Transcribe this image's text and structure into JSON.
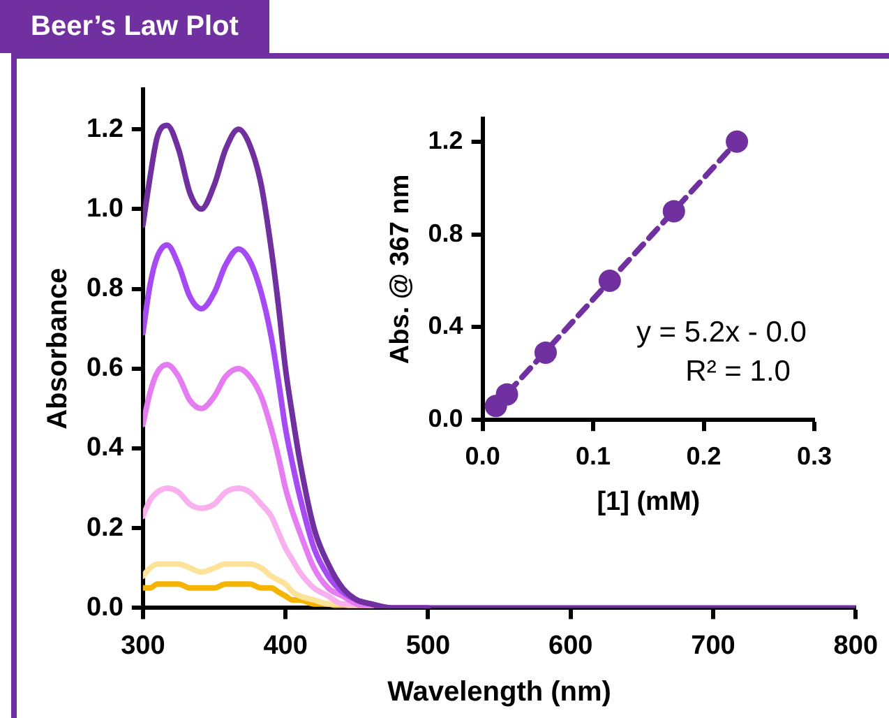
{
  "chart_data": [
    {
      "type": "line",
      "title": "Beer’s Law Plot",
      "xlabel": "Wavelength (nm)",
      "ylabel": "Absorbance",
      "x": [
        300,
        305,
        310,
        317,
        325,
        333,
        341,
        350,
        358,
        367,
        375,
        383,
        390,
        395,
        400,
        405,
        410,
        420,
        430,
        440,
        450,
        460,
        475,
        500,
        600,
        700,
        800
      ],
      "series": [
        {
          "color": "#7030a0",
          "values": [
            0.96,
            1.08,
            1.18,
            1.21,
            1.15,
            1.04,
            1.0,
            1.06,
            1.15,
            1.2,
            1.16,
            1.06,
            0.9,
            0.76,
            0.6,
            0.48,
            0.37,
            0.2,
            0.11,
            0.05,
            0.02,
            0.01,
            0,
            0,
            0,
            0,
            0
          ]
        },
        {
          "color": "#a64bf4",
          "values": [
            0.69,
            0.81,
            0.88,
            0.91,
            0.86,
            0.78,
            0.75,
            0.79,
            0.86,
            0.9,
            0.87,
            0.79,
            0.68,
            0.57,
            0.45,
            0.36,
            0.28,
            0.15,
            0.08,
            0.04,
            0.02,
            0.01,
            0,
            0,
            null,
            null,
            null
          ]
        },
        {
          "color": "#e57cf2",
          "values": [
            0.46,
            0.54,
            0.59,
            0.61,
            0.58,
            0.52,
            0.5,
            0.53,
            0.58,
            0.6,
            0.58,
            0.53,
            0.45,
            0.38,
            0.3,
            0.24,
            0.19,
            0.1,
            0.05,
            0.03,
            0.01,
            0,
            0,
            0,
            null,
            null,
            null
          ]
        },
        {
          "color": "#f9b0ee",
          "values": [
            0.23,
            0.27,
            0.29,
            0.3,
            0.29,
            0.26,
            0.25,
            0.26,
            0.29,
            0.3,
            0.29,
            0.26,
            0.23,
            0.19,
            0.15,
            0.12,
            0.09,
            0.05,
            0.03,
            0.01,
            0.01,
            0,
            null,
            null,
            null,
            null,
            null
          ]
        },
        {
          "color": "#fde29a",
          "values": [
            0.08,
            0.1,
            0.11,
            0.11,
            0.11,
            0.1,
            0.09,
            0.1,
            0.11,
            0.11,
            0.11,
            0.1,
            0.08,
            0.07,
            0.06,
            0.04,
            0.03,
            0.02,
            0.01,
            0.01,
            0,
            0,
            null,
            null,
            null,
            null,
            null
          ]
        },
        {
          "color": "#f5b400",
          "values": [
            0.05,
            0.05,
            0.06,
            0.06,
            0.06,
            0.05,
            0.05,
            0.05,
            0.06,
            0.06,
            0.06,
            0.05,
            0.05,
            0.04,
            0.03,
            0.02,
            0.02,
            0.01,
            0.01,
            0,
            0,
            0,
            null,
            null,
            null,
            null,
            null
          ]
        }
      ],
      "xlim": [
        300,
        800
      ],
      "xticks": [
        300,
        400,
        500,
        600,
        700,
        800
      ],
      "ylim": [
        0,
        1.3
      ],
      "yticks": [
        {
          "value": 0,
          "label": "0.0"
        },
        {
          "value": 0.2,
          "label": "0.2"
        },
        {
          "value": 0.4,
          "label": "0.4"
        },
        {
          "value": 0.6,
          "label": "0.6"
        },
        {
          "value": 0.8,
          "label": "0.8"
        },
        {
          "value": 1,
          "label": "1.0"
        },
        {
          "value": 1.2,
          "label": "1.2"
        }
      ],
      "grid": false,
      "legend": false,
      "marker": "none"
    },
    {
      "type": "scatter",
      "xlabel": "[1] (mM)",
      "ylabel": "Abs. @ 367 nm",
      "series": [
        {
          "type": "scatter",
          "color": "#7030a0",
          "x": [
            0.012,
            0.022,
            0.057,
            0.115,
            0.173,
            0.23
          ],
          "values": [
            0.06,
            0.11,
            0.29,
            0.6,
            0.9,
            1.2
          ],
          "marker": "circle"
        },
        {
          "type": "line",
          "color": "#7030a0",
          "x": [
            0.01,
            0.23
          ],
          "values": [
            0.05,
            1.2
          ],
          "line_style": "dashed",
          "marker": "none"
        }
      ],
      "xlim": [
        0,
        0.3
      ],
      "xticks": [
        {
          "value": 0,
          "label": "0.0"
        },
        0.1,
        0.2,
        0.3
      ],
      "ylim": [
        0,
        1.3
      ],
      "yticks": [
        {
          "value": 0,
          "label": "0.0"
        },
        0.4,
        0.8,
        1.2
      ],
      "annotations": [
        "y = 5.2x - 0.0",
        "R² = 1.0"
      ],
      "grid": false,
      "legend": false
    }
  ]
}
